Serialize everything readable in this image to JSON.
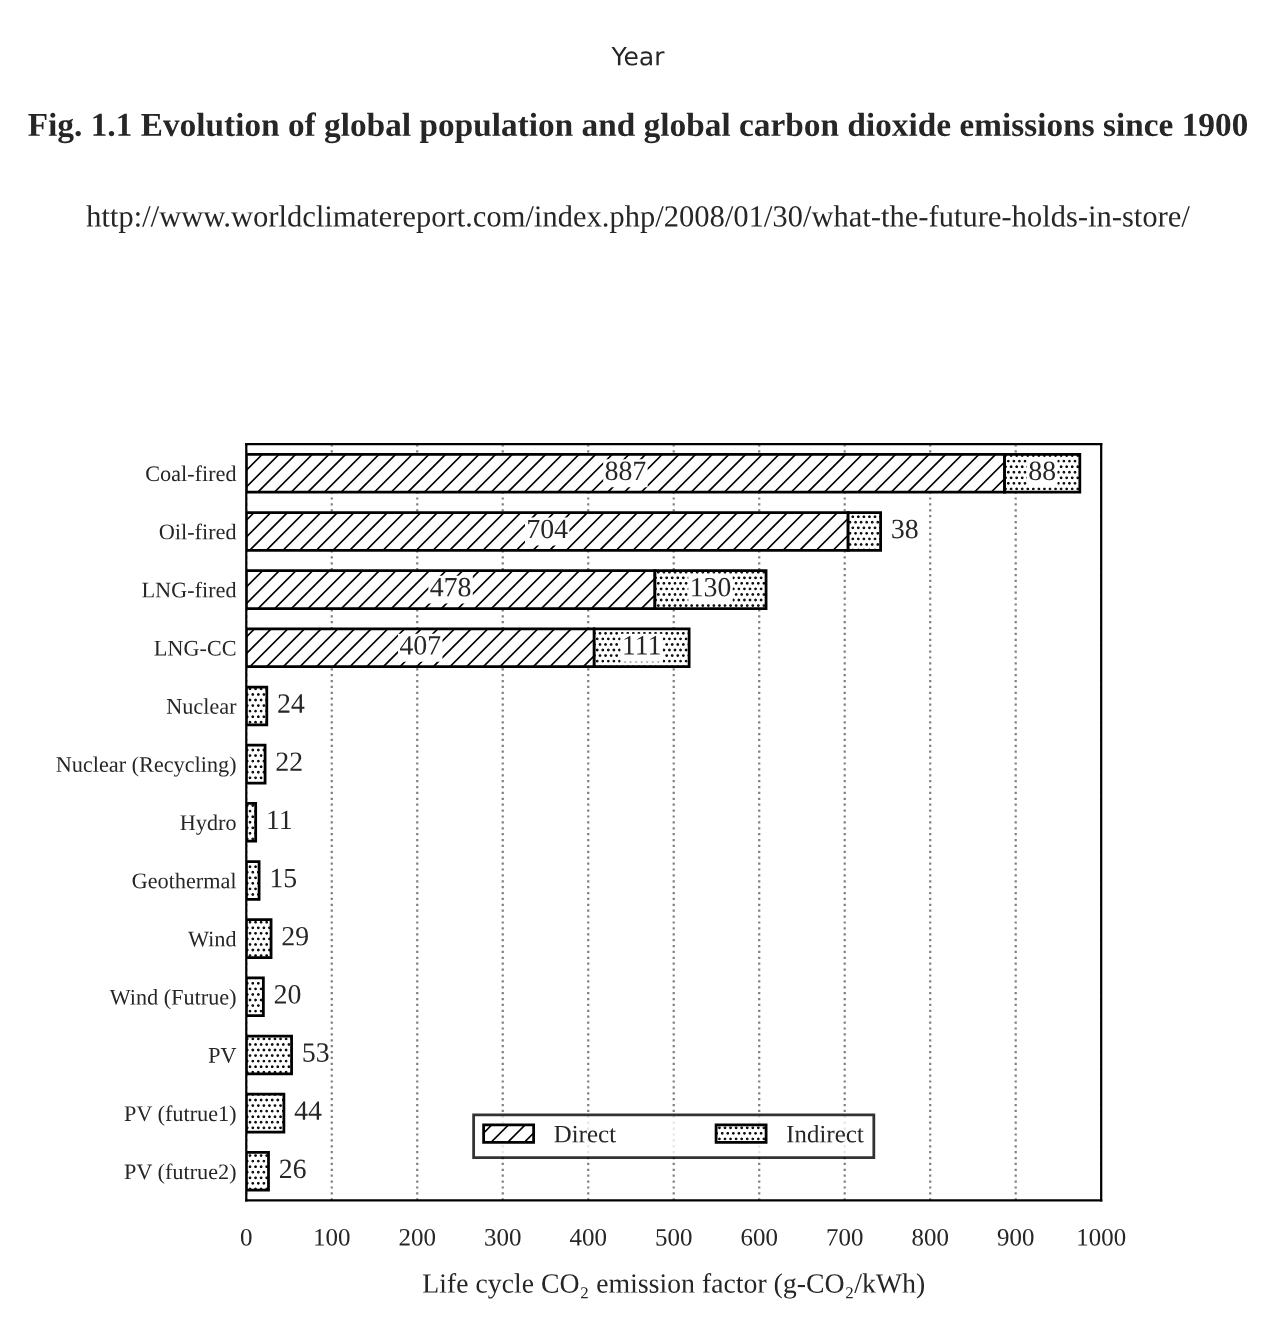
{
  "chart_data": {
    "type": "bar",
    "orientation": "horizontal",
    "stacked": true,
    "categories": [
      "Coal-fired",
      "Oil-fired",
      "LNG-fired",
      "LNG-CC",
      "Nuclear",
      "Nuclear (Recycling)",
      "Hydro",
      "Geothermal",
      "Wind",
      "Wind (Futrue)",
      "PV",
      "PV (futrue1)",
      "PV (futrue2)"
    ],
    "series": [
      {
        "name": "Direct",
        "color": "#000000",
        "values": [
          887,
          704,
          478,
          407,
          null,
          null,
          null,
          null,
          null,
          null,
          null,
          null,
          null
        ]
      },
      {
        "name": "Indirect",
        "color": "#000000",
        "values": [
          88,
          38,
          130,
          111,
          24,
          22,
          11,
          15,
          29,
          20,
          53,
          44,
          26
        ]
      }
    ],
    "data_labels": true,
    "xlim": [
      0,
      1000
    ],
    "xticks": [
      0,
      100,
      200,
      300,
      400,
      500,
      600,
      700,
      800,
      900,
      1000
    ],
    "xlabel": "Life cycle CO₂ emission factor (g-CO₂/kWh)",
    "grid": "x",
    "legend": "bottom",
    "annotations": [
      "Year",
      "Fig. 1.1 Evolution of global population and global carbon dioxide emissions since 1900",
      "http://www.worldclimatereport.com/index.php/2008/01/30/what-the-future-holds-in-store/"
    ]
  }
}
